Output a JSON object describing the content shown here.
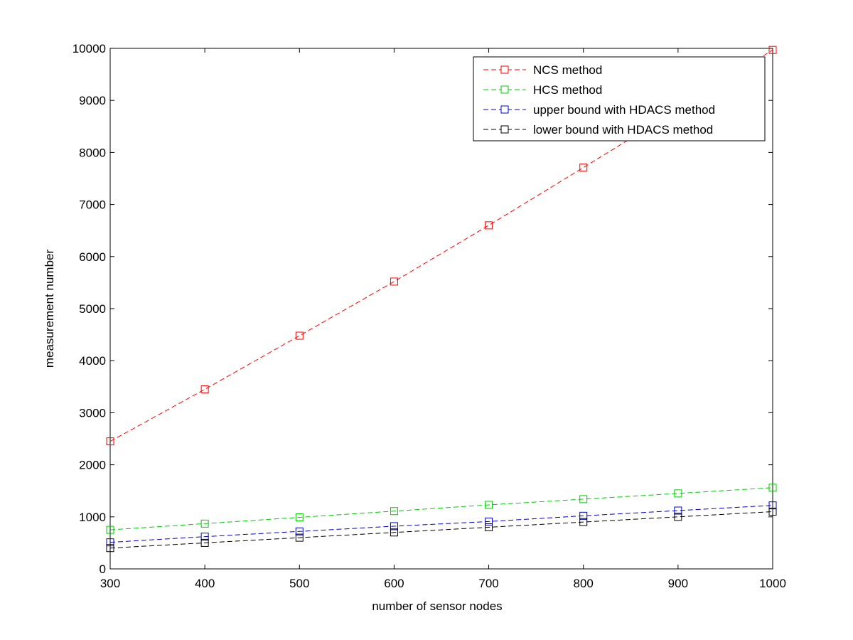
{
  "chart_data": {
    "type": "line",
    "title": "",
    "xlabel": "number of sensor nodes",
    "ylabel": "measurement number",
    "xlim": [
      300,
      1000
    ],
    "ylim": [
      0,
      10000
    ],
    "x_ticks": [
      300,
      400,
      500,
      600,
      700,
      800,
      900,
      1000
    ],
    "y_ticks": [
      0,
      1000,
      2000,
      3000,
      4000,
      5000,
      6000,
      7000,
      8000,
      9000,
      10000
    ],
    "x_tick_labels": [
      "300",
      "400",
      "500",
      "600",
      "700",
      "800",
      "900",
      "1000"
    ],
    "y_tick_labels": [
      "0",
      "1000",
      "2000",
      "3000",
      "4000",
      "5000",
      "6000",
      "7000",
      "8000",
      "9000",
      "10000"
    ],
    "grid": false,
    "legend_position": "top-right",
    "x": [
      300,
      400,
      500,
      600,
      700,
      800,
      900,
      1000
    ],
    "series": [
      {
        "name": "NCS method",
        "color": "#ff0000",
        "marker": "square",
        "line_style": "dashed",
        "values": [
          2450,
          3450,
          4480,
          5520,
          6600,
          7710,
          8830,
          9970
        ]
      },
      {
        "name": "HCS method",
        "color": "#00cc00",
        "marker": "square",
        "line_style": "dashed",
        "values": [
          750,
          870,
          990,
          1110,
          1230,
          1340,
          1450,
          1560
        ]
      },
      {
        "name": "upper bound with HDACS method",
        "color": "#0000cc",
        "marker": "square",
        "line_style": "dashed",
        "values": [
          510,
          620,
          720,
          820,
          910,
          1020,
          1120,
          1220
        ]
      },
      {
        "name": "lower bound with HDACS method",
        "color": "#000000",
        "marker": "square",
        "line_style": "dashed",
        "values": [
          400,
          500,
          600,
          700,
          800,
          900,
          1000,
          1100
        ]
      }
    ]
  }
}
